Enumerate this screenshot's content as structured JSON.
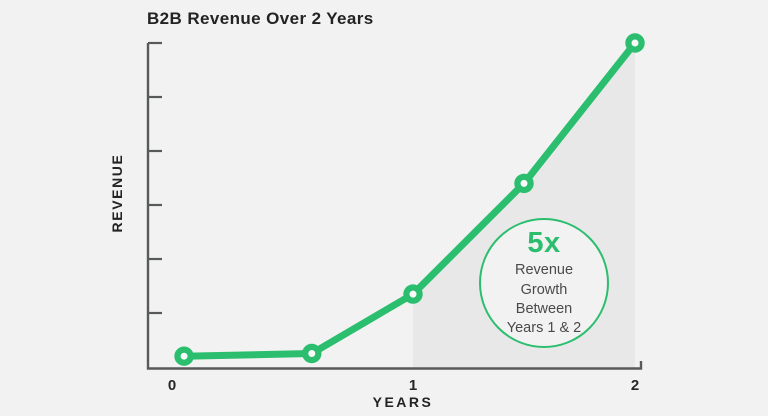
{
  "page": {
    "background": "#f2f2f2"
  },
  "chart_data": {
    "type": "line",
    "title": "B2B Revenue Over 2 Years",
    "xlabel": "YEARS",
    "ylabel": "REVENUE",
    "x": [
      0.05,
      0.58,
      1.0,
      1.5,
      2.0
    ],
    "y": [
      0.2,
      0.25,
      1.35,
      3.4,
      6.0
    ],
    "xlim": [
      0,
      2.1
    ],
    "ylim": [
      0,
      6
    ],
    "x_ticks": [
      0,
      1,
      2
    ],
    "x_tick_labels": [
      "0",
      "1",
      "2"
    ],
    "y_ticks": [
      1,
      2,
      3,
      4,
      5,
      6
    ],
    "y_tick_labels": [],
    "grid": false,
    "legend": false,
    "line_color": "#2abe6e",
    "marker": "circle-open",
    "marker_fill": "#fafafa",
    "axis_color": "#58595b",
    "shaded_region": {
      "from_x": 1.0,
      "to_x": 2.0,
      "fill": "#e8e8e8",
      "meaning": "area under curve between Years 1 and 2"
    }
  },
  "annotation_badge": {
    "value": "5x",
    "lines": [
      "Revenue",
      "Growth",
      "Between",
      "Years 1 & 2"
    ],
    "border_color": "#2abe6e",
    "value_color": "#2abe6e",
    "text_color": "#4a4a4c"
  }
}
